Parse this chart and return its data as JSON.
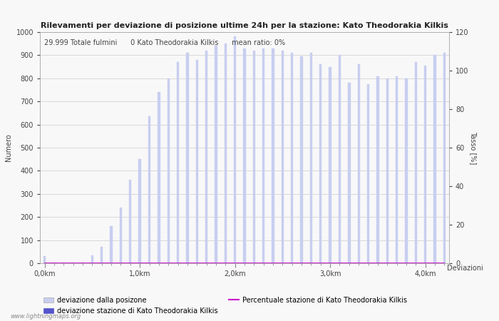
{
  "title": "Rilevamenti per deviazione di posizione ultime 24h per la stazione: Kato Theodorakia Kilkis",
  "subtitle": "29.999 Totale fulmini      0 Kato Theodorakia Kilkis      mean ratio: 0%",
  "ylabel_left": "Numero",
  "ylabel_right": "Tasso [%]",
  "xlabel": "Deviazioni",
  "bar_color": "#c8cef0",
  "bar_color_station": "#5555cc",
  "line_color": "#cc00cc",
  "background_color": "#f8f8f8",
  "grid_color": "#cccccc",
  "ylim_left": [
    0,
    1000
  ],
  "ylim_right": [
    0,
    120
  ],
  "xtick_labels": [
    "0,0km",
    "1,0km",
    "2,0km",
    "3,0km",
    "4,0km"
  ],
  "xtick_positions": [
    0,
    10,
    20,
    30,
    40
  ],
  "legend_label_light": "deviazione dalla posizone",
  "legend_label_dark": "deviazione stazione di Kato Theodorakia Kilkis",
  "legend_label_line": "Percentuale stazione di Kato Theodorakia Kilkis",
  "watermark": "www.lightningmaps.org",
  "bar_heights": [
    30,
    2,
    3,
    2,
    2,
    35,
    70,
    160,
    240,
    360,
    450,
    635,
    740,
    800,
    870,
    910,
    880,
    920,
    940,
    950,
    980,
    930,
    920,
    930,
    930,
    920,
    910,
    895,
    910,
    860,
    850,
    900,
    780,
    860,
    775,
    810,
    800,
    810,
    800,
    870,
    855,
    900,
    910
  ],
  "station_bar_heights": [
    0,
    0,
    0,
    0,
    0,
    0,
    0,
    0,
    0,
    0,
    0,
    0,
    0,
    0,
    0,
    0,
    0,
    0,
    0,
    0,
    0,
    0,
    0,
    0,
    0,
    0,
    0,
    0,
    0,
    0,
    0,
    0,
    0,
    0,
    0,
    0,
    0,
    0,
    0,
    0,
    0,
    0,
    0
  ],
  "bar_width": 0.25,
  "title_fontsize": 8,
  "subtitle_fontsize": 7,
  "axis_fontsize": 7,
  "tick_fontsize": 7,
  "legend_fontsize": 7
}
